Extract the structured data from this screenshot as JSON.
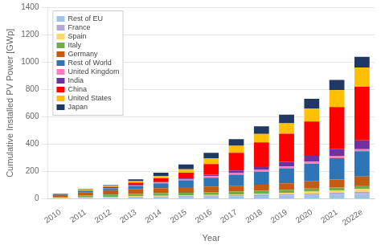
{
  "chart_data": {
    "type": "bar",
    "stacked": true,
    "xlabel": "Year",
    "ylabel": "Cumulative Installed PV Power [GWp]",
    "categories": [
      "2010",
      "2011",
      "2012",
      "2013",
      "2014",
      "2015",
      "2016",
      "2017",
      "2018",
      "2019",
      "2020",
      "2021",
      "2022e"
    ],
    "series": [
      {
        "name": "Rest of EU",
        "color": "#9dc3e6",
        "values": [
          2,
          3,
          5,
          8,
          10,
          13,
          15,
          18,
          20,
          23,
          27,
          30,
          35
        ]
      },
      {
        "name": "France",
        "color": "#b4a7d6",
        "values": [
          1,
          2,
          4,
          5,
          6,
          7,
          8,
          9,
          10,
          10,
          11,
          14,
          16
        ]
      },
      {
        "name": "Spain",
        "color": "#ffd966",
        "values": [
          4,
          5,
          5,
          5,
          5,
          5,
          5,
          5,
          8,
          10,
          15,
          17,
          20
        ]
      },
      {
        "name": "Italy",
        "color": "#70ad47",
        "values": [
          3,
          13,
          16,
          18,
          19,
          19,
          20,
          20,
          20,
          21,
          21,
          22,
          25
        ]
      },
      {
        "name": "Germany",
        "color": "#c55a11",
        "values": [
          17,
          25,
          32,
          36,
          38,
          40,
          41,
          43,
          45,
          49,
          53,
          58,
          66
        ]
      },
      {
        "name": "Rest of World",
        "color": "#2e75b6",
        "values": [
          5,
          9,
          14,
          22,
          35,
          50,
          65,
          80,
          95,
          110,
          130,
          155,
          185
        ]
      },
      {
        "name": "United Kingdom",
        "color": "#ff7eb9",
        "values": [
          0,
          1,
          2,
          3,
          5,
          9,
          12,
          13,
          13,
          13,
          14,
          14,
          15
        ]
      },
      {
        "name": "India",
        "color": "#7030a0",
        "values": [
          0,
          0,
          1,
          2,
          3,
          5,
          10,
          18,
          26,
          34,
          43,
          55,
          65
        ]
      },
      {
        "name": "China",
        "color": "#ff0000",
        "values": [
          1,
          3,
          7,
          18,
          28,
          43,
          78,
          130,
          175,
          205,
          250,
          306,
          392
        ]
      },
      {
        "name": "United States",
        "color": "#ffc000",
        "values": [
          2,
          4,
          7,
          12,
          18,
          25,
          40,
          51,
          62,
          76,
          96,
          123,
          141
        ]
      },
      {
        "name": "Japan",
        "color": "#1f3864",
        "values": [
          3,
          5,
          7,
          13,
          23,
          34,
          42,
          49,
          56,
          63,
          70,
          74,
          78
        ]
      }
    ],
    "ylim": [
      0,
      1400
    ],
    "yticks": [
      0,
      200,
      400,
      600,
      800,
      1000,
      1200,
      1400
    ],
    "grid": true,
    "legend": "upper left"
  }
}
